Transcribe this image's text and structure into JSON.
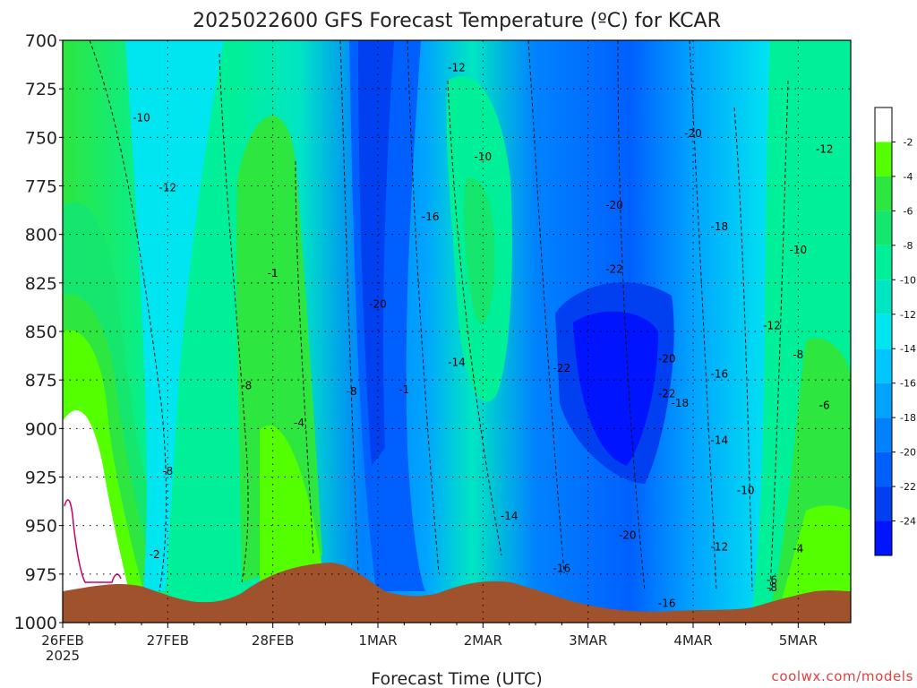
{
  "chart_data": {
    "type": "heatmap",
    "title": "2025022600 GFS Forecast Temperature (ºC) for KCAR",
    "xlabel": "Forecast Time (UTC)",
    "ylabel": "",
    "x_ticks": [
      "26FEB",
      "27FEB",
      "28FEB",
      "1MAR",
      "2MAR",
      "3MAR",
      "4MAR",
      "5MAR"
    ],
    "x_year": "2025",
    "xlim": [
      "2025-02-26T00Z",
      "2025-03-05T12Z"
    ],
    "y_ticks": [
      700,
      725,
      750,
      775,
      800,
      825,
      850,
      875,
      900,
      925,
      950,
      975,
      1000
    ],
    "ylim": [
      1000,
      700
    ],
    "y_unit": "hPa",
    "colorbar": {
      "labels": [
        -2,
        -4,
        -6,
        -8,
        -10,
        -12,
        -14,
        -16,
        -18,
        -20,
        -22,
        -24
      ],
      "colors": [
        "#ffffff",
        "#54ff00",
        "#2ee640",
        "#14e66e",
        "#00f09a",
        "#00e6c3",
        "#00e6f0",
        "#00c6ff",
        "#00a4ff",
        "#0082ff",
        "#0060ff",
        "#0040f0",
        "#0014ff"
      ]
    },
    "contour_labels": [
      {
        "t": "2025-02-26T18Z",
        "p": 740,
        "v": -10
      },
      {
        "t": "2025-02-27T00Z",
        "p": 776,
        "v": -12
      },
      {
        "t": "2025-02-27T18Z",
        "p": 878,
        "v": -8
      },
      {
        "t": "2025-02-27T00Z",
        "p": 922,
        "v": -8
      },
      {
        "t": "2025-02-26T21Z",
        "p": 965,
        "v": -2
      },
      {
        "t": "2025-02-28T06Z",
        "p": 897,
        "v": -4
      },
      {
        "t": "2025-02-28T18Z",
        "p": 881,
        "v": -8
      },
      {
        "t": "2025-03-01T00Z",
        "p": 836,
        "v": -20
      },
      {
        "t": "2025-03-01T12Z",
        "p": 791,
        "v": -16
      },
      {
        "t": "2025-03-01T18Z",
        "p": 714,
        "v": -12
      },
      {
        "t": "2025-03-02T00Z",
        "p": 760,
        "v": -10
      },
      {
        "t": "2025-03-01T18Z",
        "p": 866,
        "v": -14
      },
      {
        "t": "2025-03-01T06Z",
        "p": 880,
        "v": -1
      },
      {
        "t": "2025-03-02T06Z",
        "p": 945,
        "v": -14
      },
      {
        "t": "2025-03-02T18Z",
        "p": 972,
        "v": -16
      },
      {
        "t": "2025-03-02T18Z",
        "p": 869,
        "v": -22
      },
      {
        "t": "2025-03-03T06Z",
        "p": 818,
        "v": -22
      },
      {
        "t": "2025-03-03T06Z",
        "p": 785,
        "v": -20
      },
      {
        "t": "2025-03-04T00Z",
        "p": 748,
        "v": -20
      },
      {
        "t": "2025-03-04T06Z",
        "p": 796,
        "v": -18
      },
      {
        "t": "2025-03-03T18Z",
        "p": 864,
        "v": -20
      },
      {
        "t": "2025-03-03T18Z",
        "p": 882,
        "v": -22
      },
      {
        "t": "2025-03-03T21Z",
        "p": 887,
        "v": -18
      },
      {
        "t": "2025-03-04T06Z",
        "p": 872,
        "v": -16
      },
      {
        "t": "2025-03-04T06Z",
        "p": 906,
        "v": -14
      },
      {
        "t": "2025-03-04T12Z",
        "p": 932,
        "v": -10
      },
      {
        "t": "2025-03-03T09Z",
        "p": 955,
        "v": -20
      },
      {
        "t": "2025-03-04T06Z",
        "p": 961,
        "v": -12
      },
      {
        "t": "2025-03-03T18Z",
        "p": 990,
        "v": -16
      },
      {
        "t": "2025-03-04T18Z",
        "p": 982,
        "v": -8
      },
      {
        "t": "2025-03-04T18Z",
        "p": 978,
        "v": -6
      },
      {
        "t": "2025-03-04T18Z",
        "p": 847,
        "v": -12
      },
      {
        "t": "2025-03-05T00Z",
        "p": 808,
        "v": -10
      },
      {
        "t": "2025-03-05T00Z",
        "p": 862,
        "v": -8
      },
      {
        "t": "2025-03-05T06Z",
        "p": 888,
        "v": -6
      },
      {
        "t": "2025-03-05T00Z",
        "p": 962,
        "v": -4
      },
      {
        "t": "2025-03-05T06Z",
        "p": 756,
        "v": -12
      },
      {
        "t": "2025-02-28T00Z",
        "p": 820,
        "v": -1
      }
    ],
    "terrain_color": "#a0522d",
    "freezing_line_color": "#cc0066",
    "grid": true,
    "colorbar_position": "right"
  },
  "watermark": "coolwx.com/models"
}
